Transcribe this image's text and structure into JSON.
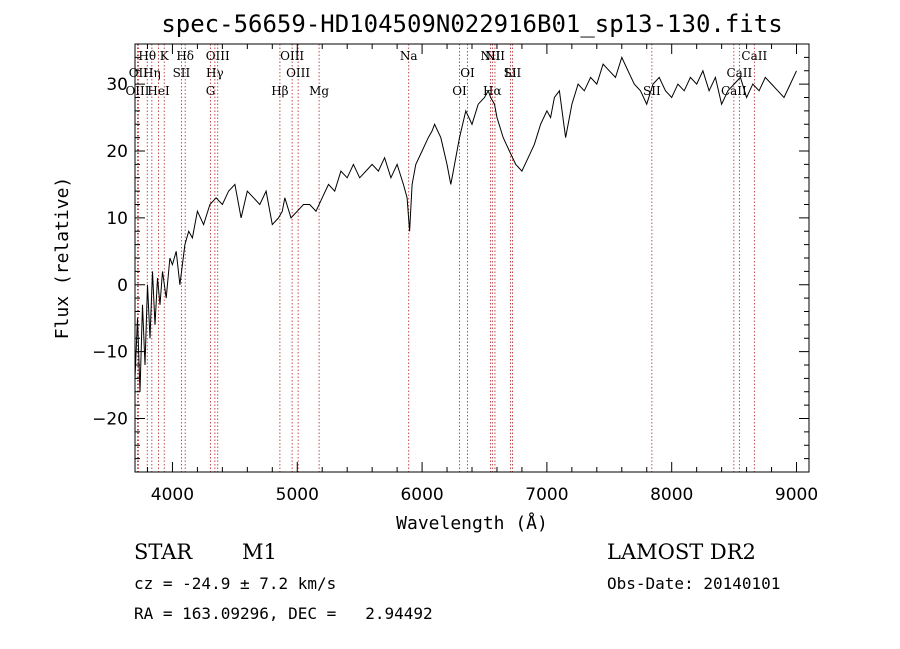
{
  "chart_data": {
    "type": "line",
    "title": "spec-56659-HD104509N022916B01_sp13-130.fits",
    "xlabel": "Wavelength (Å)",
    "ylabel": "Flux (relative)",
    "xlim": [
      3700,
      9100
    ],
    "ylim": [
      -28,
      36
    ],
    "xticks": [
      4000,
      5000,
      6000,
      7000,
      8000,
      9000
    ],
    "yticks": [
      -20,
      -10,
      0,
      10,
      20,
      30
    ],
    "grid": false,
    "series": [
      {
        "x": [
          3700,
          3720,
          3740,
          3760,
          3780,
          3800,
          3820,
          3840,
          3860,
          3880,
          3900,
          3920,
          3950,
          3980,
          4000,
          4030,
          4060,
          4100,
          4130,
          4160,
          4200,
          4250,
          4300,
          4350,
          4400,
          4450,
          4500,
          4550,
          4600,
          4650,
          4700,
          4750,
          4800,
          4850,
          4880,
          4900,
          4950,
          5000,
          5050,
          5100,
          5150,
          5200,
          5250,
          5300,
          5350,
          5400,
          5450,
          5500,
          5550,
          5600,
          5650,
          5700,
          5750,
          5800,
          5850,
          5880,
          5900,
          5920,
          5950,
          6000,
          6050,
          6080,
          6100,
          6150,
          6200,
          6230,
          6250,
          6300,
          6350,
          6400,
          6450,
          6500,
          6530,
          6550,
          6580,
          6600,
          6650,
          6700,
          6750,
          6800,
          6850,
          6900,
          6950,
          7000,
          7030,
          7060,
          7100,
          7150,
          7180,
          7200,
          7250,
          7300,
          7350,
          7400,
          7450,
          7500,
          7550,
          7600,
          7650,
          7700,
          7750,
          7800,
          7850,
          7900,
          7950,
          8000,
          8050,
          8100,
          8150,
          8200,
          8250,
          8300,
          8350,
          8400,
          8450,
          8500,
          8550,
          8600,
          8650,
          8700,
          8750,
          8800,
          8850,
          8900,
          8950,
          9000
        ],
        "y": [
          -14,
          -5,
          -16,
          -3,
          -12,
          0,
          -8,
          2,
          -6,
          1,
          -3,
          2,
          -2,
          4,
          3,
          5,
          0,
          6,
          8,
          7,
          11,
          9,
          12,
          13,
          12,
          14,
          15,
          10,
          14,
          13,
          12,
          14,
          9,
          10,
          11,
          13,
          10,
          11,
          12,
          12,
          11,
          13,
          15,
          14,
          17,
          16,
          18,
          16,
          17,
          18,
          17,
          19,
          16,
          18,
          15,
          13,
          8,
          15,
          18,
          20,
          22,
          23,
          24,
          22,
          18,
          15,
          17,
          22,
          26,
          24,
          27,
          28,
          29,
          28,
          27,
          25,
          22,
          20,
          18,
          17,
          19,
          21,
          24,
          26,
          25,
          28,
          29,
          22,
          25,
          27,
          30,
          29,
          31,
          30,
          33,
          32,
          31,
          34,
          32,
          30,
          29,
          27,
          30,
          31,
          29,
          28,
          30,
          29,
          31,
          30,
          32,
          29,
          31,
          27,
          29,
          30,
          31,
          28,
          30,
          29,
          31,
          30,
          29,
          28,
          30,
          32
        ]
      }
    ],
    "lines": [
      {
        "label": "Hθ",
        "x": 3798
      },
      {
        "label": "OII",
        "x": 3727
      },
      {
        "label": "OIII",
        "x": 3720
      },
      {
        "label": "K",
        "x": 3934
      },
      {
        "label": "Hη",
        "x": 3835
      },
      {
        "label": "HeI",
        "x": 3889
      },
      {
        "label": "Hδ",
        "x": 4102
      },
      {
        "label": "SII",
        "x": 4072
      },
      {
        "label": "G",
        "x": 4305
      },
      {
        "label": "OIII",
        "x": 4363
      },
      {
        "label": "Hγ",
        "x": 4340
      },
      {
        "label": "Hβ",
        "x": 4861
      },
      {
        "label": "OIII",
        "x": 4959
      },
      {
        "label": "OIII",
        "x": 5007
      },
      {
        "label": "Mg",
        "x": 5175
      },
      {
        "label": "Na",
        "x": 5893
      },
      {
        "label": "OI",
        "x": 6364
      },
      {
        "label": "OI",
        "x": 6300
      },
      {
        "label": "NII",
        "x": 6584
      },
      {
        "label": "SII",
        "x": 6724
      },
      {
        "label": "Hα",
        "x": 6563
      },
      {
        "label": "NII",
        "x": 6548
      },
      {
        "label": "Li",
        "x": 6708
      },
      {
        "label": "SII",
        "x": 7841
      },
      {
        "label": "CaII",
        "x": 8662
      },
      {
        "label": "CaII",
        "x": 8542
      },
      {
        "label": "CaII",
        "x": 8498
      }
    ]
  },
  "info": {
    "object_class": "STAR",
    "subclass": "M1",
    "survey": "LAMOST DR2",
    "redshift": "cz = -24.9 ± 7.2 km/s",
    "obs_date": "Obs-Date: 20140101",
    "coords": "RA = 163.09296, DEC =   2.94492"
  }
}
